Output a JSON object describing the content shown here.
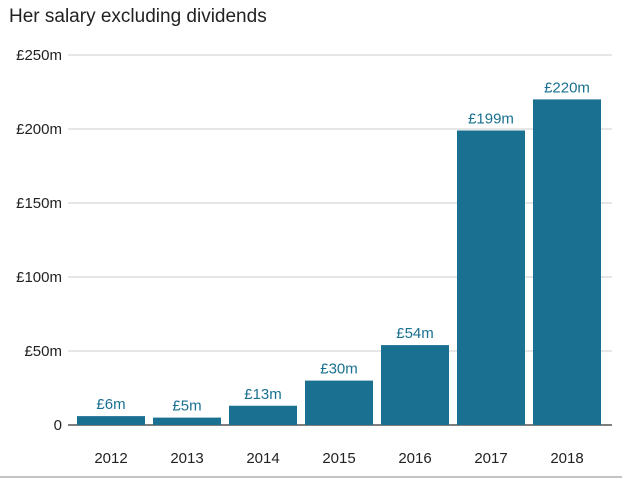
{
  "colors": {
    "bar": "#1a7091",
    "label": "#1a7091",
    "grid": "#cccccc",
    "axis": "#333333",
    "text": "#222222"
  },
  "chart_data": {
    "type": "bar",
    "title": "Her salary excluding dividends",
    "xlabel": "",
    "ylabel": "",
    "categories": [
      "2012",
      "2013",
      "2014",
      "2015",
      "2016",
      "2017",
      "2018"
    ],
    "values": [
      6,
      5,
      13,
      30,
      54,
      199,
      220
    ],
    "data_labels": [
      "£6m",
      "£5m",
      "£13m",
      "£30m",
      "£54m",
      "£199m",
      "£220m"
    ],
    "ylim": [
      0,
      250
    ],
    "yticks": [
      0,
      50,
      100,
      150,
      200,
      250
    ],
    "ytick_labels": [
      "0",
      "£50m",
      "£100m",
      "£150m",
      "£200m",
      "£250m"
    ],
    "grid": true,
    "legend": "none"
  }
}
